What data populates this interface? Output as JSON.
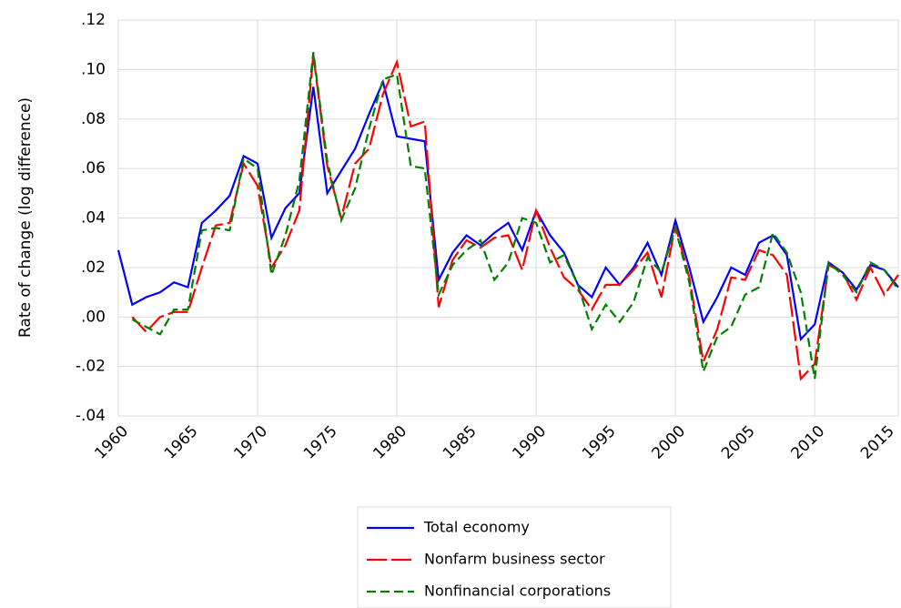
{
  "chart_data": {
    "type": "line",
    "ylabel": "Rate of change (log difference)",
    "x": [
      1960,
      1961,
      1962,
      1963,
      1964,
      1965,
      1966,
      1967,
      1968,
      1969,
      1970,
      1971,
      1972,
      1973,
      1974,
      1975,
      1976,
      1977,
      1978,
      1979,
      1980,
      1981,
      1982,
      1983,
      1984,
      1985,
      1986,
      1987,
      1988,
      1989,
      1990,
      1991,
      1992,
      1993,
      1994,
      1995,
      1996,
      1997,
      1998,
      1999,
      2000,
      2001,
      2002,
      2003,
      2004,
      2005,
      2006,
      2007,
      2008,
      2009,
      2010,
      2011,
      2012,
      2013,
      2014,
      2015,
      2016
    ],
    "xlim": [
      1960,
      2016
    ],
    "xticks": [
      1960,
      1965,
      1970,
      1975,
      1980,
      1985,
      1990,
      1995,
      2000,
      2005,
      2010,
      2015
    ],
    "ylim": [
      -0.04,
      0.12
    ],
    "yticks": [
      {
        "value": -0.04,
        "label": "-.04"
      },
      {
        "value": -0.02,
        "label": "-.02"
      },
      {
        "value": 0,
        "label": ".00"
      },
      {
        "value": 0.02,
        "label": ".02"
      },
      {
        "value": 0.04,
        "label": ".04"
      },
      {
        "value": 0.06,
        "label": ".06"
      },
      {
        "value": 0.08,
        "label": ".08"
      },
      {
        "value": 0.1,
        "label": ".10"
      },
      {
        "value": 0.12,
        "label": ".12"
      }
    ],
    "grid": true,
    "legend": "bottom",
    "series": [
      {
        "name": "Total economy",
        "color": "#0000ff",
        "values": [
          0.027,
          0.005,
          0.008,
          0.01,
          0.014,
          0.012,
          0.038,
          0.043,
          0.049,
          0.065,
          0.062,
          0.032,
          0.044,
          0.05,
          0.093,
          0.05,
          0.059,
          0.068,
          0.082,
          0.095,
          0.073,
          0.072,
          0.071,
          0.015,
          0.026,
          0.033,
          0.029,
          0.034,
          0.038,
          0.027,
          0.043,
          0.033,
          0.026,
          0.013,
          0.008,
          0.02,
          0.013,
          0.02,
          0.03,
          0.017,
          0.039,
          0.02,
          -0.002,
          0.008,
          0.02,
          0.017,
          0.03,
          0.033,
          0.025,
          -0.009,
          -0.003,
          0.022,
          0.018,
          0.011,
          0.021,
          0.019,
          0.012
        ]
      },
      {
        "name": "Nonfarm business sector",
        "color": "#ff0000",
        "values": [
          null,
          0.0,
          -0.006,
          0.0,
          0.002,
          0.002,
          0.02,
          0.037,
          0.038,
          0.062,
          0.053,
          0.02,
          0.029,
          0.043,
          0.106,
          0.061,
          0.04,
          0.062,
          0.068,
          0.09,
          0.103,
          0.077,
          0.079,
          0.004,
          0.023,
          0.031,
          0.028,
          0.032,
          0.033,
          0.019,
          0.043,
          0.028,
          0.016,
          0.011,
          0.003,
          0.013,
          0.013,
          0.019,
          0.026,
          0.008,
          0.037,
          0.016,
          -0.018,
          -0.005,
          0.016,
          0.015,
          0.027,
          0.025,
          0.017,
          -0.025,
          -0.019,
          0.021,
          0.018,
          0.007,
          0.02,
          0.009,
          0.017
        ]
      },
      {
        "name": "Nonfinancial corporations",
        "color": "#008000",
        "values": [
          null,
          -0.001,
          -0.004,
          -0.007,
          0.003,
          0.003,
          0.035,
          0.036,
          0.035,
          0.064,
          0.06,
          0.017,
          0.033,
          0.055,
          0.107,
          0.063,
          0.039,
          0.052,
          0.076,
          0.096,
          0.098,
          0.061,
          0.06,
          0.009,
          0.021,
          0.027,
          0.031,
          0.015,
          0.022,
          0.04,
          0.038,
          0.022,
          0.025,
          0.013,
          -0.005,
          0.005,
          -0.002,
          0.006,
          0.024,
          0.018,
          0.036,
          0.014,
          -0.022,
          -0.008,
          -0.004,
          0.009,
          0.012,
          0.034,
          0.026,
          0.01,
          -0.025,
          0.022,
          0.017,
          0.01,
          0.022,
          0.019,
          0.011
        ]
      }
    ]
  }
}
